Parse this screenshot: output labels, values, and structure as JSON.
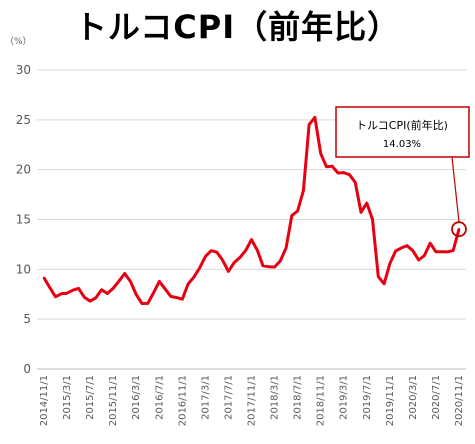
{
  "title": "トルコCPI（前年比）",
  "unit_label": "（%）",
  "callout": {
    "line1": "トルコCPI(前年比)",
    "line2": "14.03%"
  },
  "colors": {
    "line": "#e60012",
    "grid": "#d9d9d9",
    "axis": "#bfbfbf",
    "text": "#595959",
    "callout_border": "#c00000"
  },
  "chart_data": {
    "type": "line",
    "title": "トルコCPI（前年比）",
    "ylabel": "（%）",
    "xlabel": "",
    "ylim": [
      0,
      30
    ],
    "y_ticks": [
      0,
      5,
      10,
      15,
      20,
      25,
      30
    ],
    "x_tick_labels": [
      "2014/11/1",
      "2015/3/1",
      "2015/7/1",
      "2015/11/1",
      "2016/3/1",
      "2016/7/1",
      "2016/11/1",
      "2017/3/1",
      "2017/7/1",
      "2017/11/1",
      "2018/3/1",
      "2018/7/1",
      "2018/11/1",
      "2019/3/1",
      "2019/7/1",
      "2019/11/1",
      "2020/3/1",
      "2020/7/1",
      "2020/11/1"
    ],
    "grid": true,
    "legend": "none",
    "series": [
      {
        "x": [
          "2014/11/1",
          "2014/12/1",
          "2015/1/1",
          "2015/2/1",
          "2015/3/1",
          "2015/4/1",
          "2015/5/1",
          "2015/6/1",
          "2015/7/1",
          "2015/8/1",
          "2015/9/1",
          "2015/10/1",
          "2015/11/1",
          "2015/12/1",
          "2016/1/1",
          "2016/2/1",
          "2016/3/1",
          "2016/4/1",
          "2016/5/1",
          "2016/6/1",
          "2016/7/1",
          "2016/8/1",
          "2016/9/1",
          "2016/10/1",
          "2016/11/1",
          "2016/12/1",
          "2017/1/1",
          "2017/2/1",
          "2017/3/1",
          "2017/4/1",
          "2017/5/1",
          "2017/6/1",
          "2017/7/1",
          "2017/8/1",
          "2017/9/1",
          "2017/10/1",
          "2017/11/1",
          "2017/12/1",
          "2018/1/1",
          "2018/2/1",
          "2018/3/1",
          "2018/4/1",
          "2018/5/1",
          "2018/6/1",
          "2018/7/1",
          "2018/8/1",
          "2018/9/1",
          "2018/10/1",
          "2018/11/1",
          "2018/12/1",
          "2019/1/1",
          "2019/2/1",
          "2019/3/1",
          "2019/4/1",
          "2019/5/1",
          "2019/6/1",
          "2019/7/1",
          "2019/8/1",
          "2019/9/1",
          "2019/10/1",
          "2019/11/1",
          "2019/12/1",
          "2020/1/1",
          "2020/2/1",
          "2020/3/1",
          "2020/4/1",
          "2020/5/1",
          "2020/6/1",
          "2020/7/1",
          "2020/8/1",
          "2020/9/1",
          "2020/10/1",
          "2020/11/1"
        ],
        "values": [
          9.15,
          8.17,
          7.24,
          7.55,
          7.61,
          7.91,
          8.09,
          7.2,
          6.81,
          7.14,
          7.95,
          7.58,
          8.1,
          8.81,
          9.58,
          8.78,
          7.46,
          6.57,
          6.58,
          7.64,
          8.79,
          8.05,
          7.28,
          7.16,
          7.0,
          8.53,
          9.22,
          10.13,
          11.29,
          11.87,
          11.72,
          10.9,
          9.79,
          10.68,
          11.2,
          11.9,
          12.98,
          11.92,
          10.35,
          10.26,
          10.23,
          10.85,
          12.15,
          15.39,
          15.85,
          17.9,
          24.52,
          25.24,
          21.62,
          20.3,
          20.35,
          19.67,
          19.71,
          19.5,
          18.71,
          15.72,
          16.65,
          15.01,
          9.26,
          8.55,
          10.56,
          11.84,
          12.15,
          12.37,
          11.86,
          10.94,
          11.39,
          12.62,
          11.76,
          11.77,
          11.75,
          11.89,
          14.03
        ]
      }
    ],
    "annotation": {
      "text": "トルコCPI(前年比) 14.03%",
      "point": [
        "2020/11/1",
        14.03
      ]
    }
  }
}
